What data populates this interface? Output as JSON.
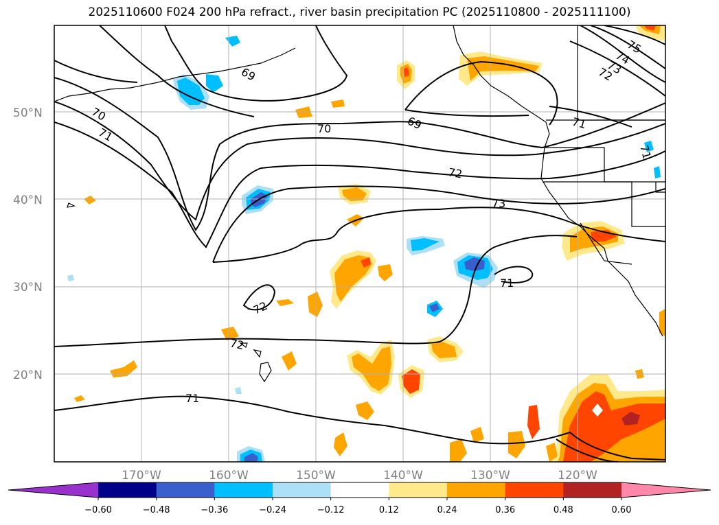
{
  "title": "2025110600 F024 200 hPa refract., river basin precipitation PC (2025110800 - 2025111100)",
  "lat_labels": [
    "50°N",
    "40°N",
    "30°N",
    "20°N"
  ],
  "lon_labels": [
    "170°W",
    "160°W",
    "150°W",
    "140°W",
    "130°W",
    "120°W"
  ],
  "contour_labels": [
    "75",
    "74",
    "73",
    "72",
    "69",
    "70",
    "71",
    "70",
    "69",
    "72",
    "73",
    "71",
    "72",
    "72",
    "71",
    "71",
    "71"
  ],
  "colorbar": {
    "ticks": [
      "−0.60",
      "−0.48",
      "−0.36",
      "−0.24",
      "−0.12",
      "0.12",
      "0.24",
      "0.36",
      "0.48",
      "0.60"
    ],
    "colors": [
      "#9932CC",
      "#00008B",
      "#3A5FCD",
      "#00BFFF",
      "#ADDFF7",
      "#FFFFFF",
      "#FFE98A",
      "#FFA500",
      "#FF4500",
      "#B22222",
      "#FF88AA"
    ]
  },
  "chart_data": {
    "type": "map",
    "projection": "equirectangular",
    "lon_range": [
      -180,
      -110
    ],
    "lat_range": [
      10,
      60
    ],
    "grid": true,
    "contour_field": "200 hPa refractivity",
    "contour_levels_labeled": [
      69,
      70,
      71,
      72,
      73,
      74,
      75
    ],
    "shaded_field": "river basin precipitation PC",
    "shading_levels": [
      -0.6,
      -0.48,
      -0.36,
      -0.24,
      -0.12,
      0.12,
      0.24,
      0.36,
      0.48,
      0.6
    ]
  }
}
